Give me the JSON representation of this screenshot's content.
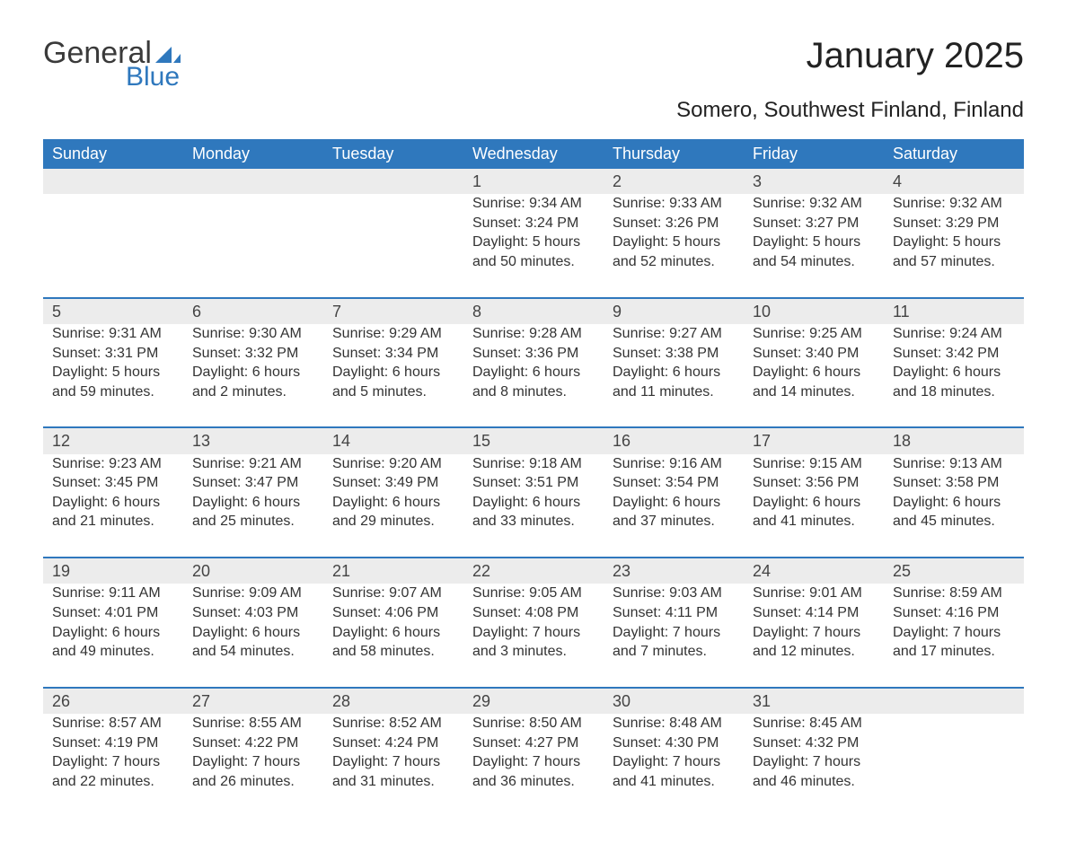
{
  "logo": {
    "word1": "General",
    "word2": "Blue",
    "sail_color": "#2f78bd"
  },
  "header": {
    "title": "January 2025",
    "subtitle": "Somero, Southwest Finland, Finland"
  },
  "colors": {
    "header_bg": "#2f78bd",
    "header_text": "#ffffff",
    "daynum_bg": "#ececec",
    "row_divider": "#2f78bd",
    "body_text": "#333333",
    "page_bg": "#ffffff"
  },
  "typography": {
    "title_fontsize": 40,
    "subtitle_fontsize": 24,
    "dayheader_fontsize": 18,
    "cell_fontsize": 16,
    "font_family": "Arial"
  },
  "labels": {
    "sunrise": "Sunrise:",
    "sunset": "Sunset:",
    "daylight": "Daylight:"
  },
  "calendar": {
    "columns": [
      "Sunday",
      "Monday",
      "Tuesday",
      "Wednesday",
      "Thursday",
      "Friday",
      "Saturday"
    ],
    "weeks": [
      [
        null,
        null,
        null,
        {
          "day": "1",
          "sunrise": "9:34 AM",
          "sunset": "3:24 PM",
          "daylight": "5 hours and 50 minutes."
        },
        {
          "day": "2",
          "sunrise": "9:33 AM",
          "sunset": "3:26 PM",
          "daylight": "5 hours and 52 minutes."
        },
        {
          "day": "3",
          "sunrise": "9:32 AM",
          "sunset": "3:27 PM",
          "daylight": "5 hours and 54 minutes."
        },
        {
          "day": "4",
          "sunrise": "9:32 AM",
          "sunset": "3:29 PM",
          "daylight": "5 hours and 57 minutes."
        }
      ],
      [
        {
          "day": "5",
          "sunrise": "9:31 AM",
          "sunset": "3:31 PM",
          "daylight": "5 hours and 59 minutes."
        },
        {
          "day": "6",
          "sunrise": "9:30 AM",
          "sunset": "3:32 PM",
          "daylight": "6 hours and 2 minutes."
        },
        {
          "day": "7",
          "sunrise": "9:29 AM",
          "sunset": "3:34 PM",
          "daylight": "6 hours and 5 minutes."
        },
        {
          "day": "8",
          "sunrise": "9:28 AM",
          "sunset": "3:36 PM",
          "daylight": "6 hours and 8 minutes."
        },
        {
          "day": "9",
          "sunrise": "9:27 AM",
          "sunset": "3:38 PM",
          "daylight": "6 hours and 11 minutes."
        },
        {
          "day": "10",
          "sunrise": "9:25 AM",
          "sunset": "3:40 PM",
          "daylight": "6 hours and 14 minutes."
        },
        {
          "day": "11",
          "sunrise": "9:24 AM",
          "sunset": "3:42 PM",
          "daylight": "6 hours and 18 minutes."
        }
      ],
      [
        {
          "day": "12",
          "sunrise": "9:23 AM",
          "sunset": "3:45 PM",
          "daylight": "6 hours and 21 minutes."
        },
        {
          "day": "13",
          "sunrise": "9:21 AM",
          "sunset": "3:47 PM",
          "daylight": "6 hours and 25 minutes."
        },
        {
          "day": "14",
          "sunrise": "9:20 AM",
          "sunset": "3:49 PM",
          "daylight": "6 hours and 29 minutes."
        },
        {
          "day": "15",
          "sunrise": "9:18 AM",
          "sunset": "3:51 PM",
          "daylight": "6 hours and 33 minutes."
        },
        {
          "day": "16",
          "sunrise": "9:16 AM",
          "sunset": "3:54 PM",
          "daylight": "6 hours and 37 minutes."
        },
        {
          "day": "17",
          "sunrise": "9:15 AM",
          "sunset": "3:56 PM",
          "daylight": "6 hours and 41 minutes."
        },
        {
          "day": "18",
          "sunrise": "9:13 AM",
          "sunset": "3:58 PM",
          "daylight": "6 hours and 45 minutes."
        }
      ],
      [
        {
          "day": "19",
          "sunrise": "9:11 AM",
          "sunset": "4:01 PM",
          "daylight": "6 hours and 49 minutes."
        },
        {
          "day": "20",
          "sunrise": "9:09 AM",
          "sunset": "4:03 PM",
          "daylight": "6 hours and 54 minutes."
        },
        {
          "day": "21",
          "sunrise": "9:07 AM",
          "sunset": "4:06 PM",
          "daylight": "6 hours and 58 minutes."
        },
        {
          "day": "22",
          "sunrise": "9:05 AM",
          "sunset": "4:08 PM",
          "daylight": "7 hours and 3 minutes."
        },
        {
          "day": "23",
          "sunrise": "9:03 AM",
          "sunset": "4:11 PM",
          "daylight": "7 hours and 7 minutes."
        },
        {
          "day": "24",
          "sunrise": "9:01 AM",
          "sunset": "4:14 PM",
          "daylight": "7 hours and 12 minutes."
        },
        {
          "day": "25",
          "sunrise": "8:59 AM",
          "sunset": "4:16 PM",
          "daylight": "7 hours and 17 minutes."
        }
      ],
      [
        {
          "day": "26",
          "sunrise": "8:57 AM",
          "sunset": "4:19 PM",
          "daylight": "7 hours and 22 minutes."
        },
        {
          "day": "27",
          "sunrise": "8:55 AM",
          "sunset": "4:22 PM",
          "daylight": "7 hours and 26 minutes."
        },
        {
          "day": "28",
          "sunrise": "8:52 AM",
          "sunset": "4:24 PM",
          "daylight": "7 hours and 31 minutes."
        },
        {
          "day": "29",
          "sunrise": "8:50 AM",
          "sunset": "4:27 PM",
          "daylight": "7 hours and 36 minutes."
        },
        {
          "day": "30",
          "sunrise": "8:48 AM",
          "sunset": "4:30 PM",
          "daylight": "7 hours and 41 minutes."
        },
        {
          "day": "31",
          "sunrise": "8:45 AM",
          "sunset": "4:32 PM",
          "daylight": "7 hours and 46 minutes."
        },
        null
      ]
    ]
  }
}
